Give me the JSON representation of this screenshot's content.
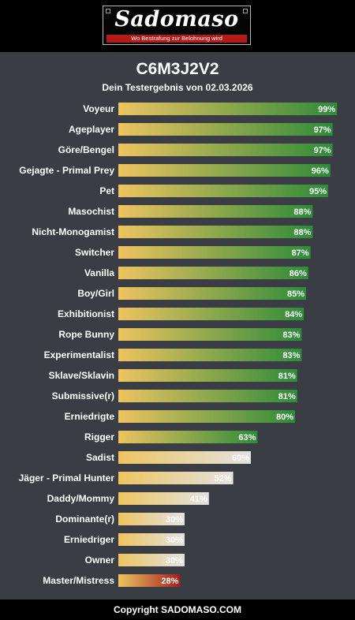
{
  "header": {
    "logo_text": "Sadomaso",
    "logo_tagline": "Wo Bestrafung zur Belohnung wird"
  },
  "title": "C6M3J2V2",
  "subtitle": "Dein Testergebnis von 02.03.2026",
  "footer": "Copyright SADOMASO.COM",
  "colors": {
    "background": "#3b3d44",
    "header_bg": "#000000",
    "bar_start": "#eec460",
    "bar_high": "#2e8b3a",
    "bar_mid": "#e2e2e2",
    "bar_low": "#a51f1f",
    "tagline_red": "#b31b1b"
  },
  "chart_data": {
    "type": "bar",
    "orientation": "horizontal",
    "title": "C6M3J2V2",
    "subtitle": "Dein Testergebnis von 02.03.2026",
    "xlim": [
      0,
      100
    ],
    "value_suffix": "%",
    "grid": false,
    "categories": [
      "Voyeur",
      "Ageplayer",
      "Göre/Bengel",
      "Gejagte - Primal Prey",
      "Pet",
      "Masochist",
      "Nicht-Monogamist",
      "Switcher",
      "Vanilla",
      "Boy/Girl",
      "Exhibitionist",
      "Rope Bunny",
      "Experimentalist",
      "Sklave/Sklavin",
      "Submissive(r)",
      "Erniedrigte",
      "Rigger",
      "Sadist",
      "Jäger - Primal Hunter",
      "Daddy/Mommy",
      "Dominante(r)",
      "Erniedriger",
      "Owner",
      "Master/Mistress"
    ],
    "values": [
      99,
      97,
      97,
      96,
      95,
      88,
      88,
      87,
      86,
      85,
      84,
      83,
      83,
      81,
      81,
      80,
      63,
      60,
      52,
      41,
      30,
      30,
      30,
      28
    ]
  }
}
